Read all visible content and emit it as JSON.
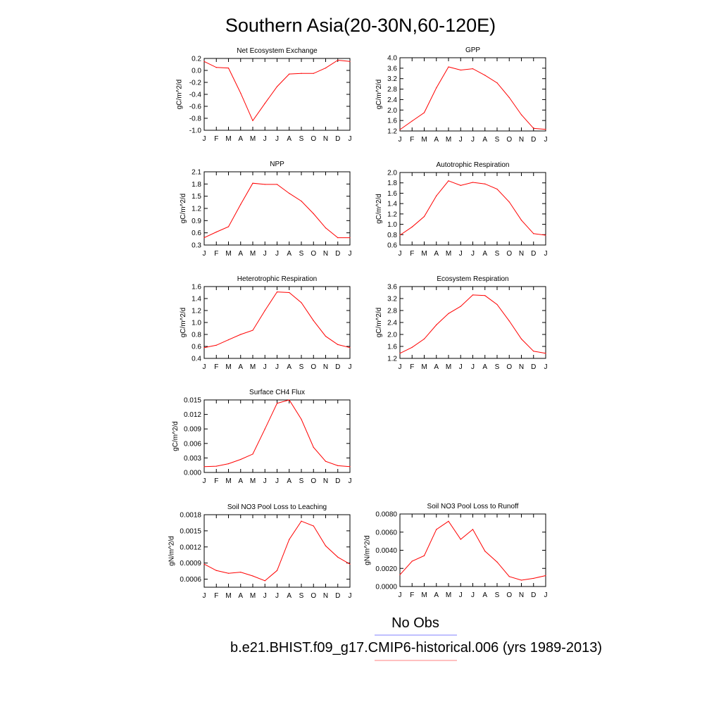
{
  "figure": {
    "title": "Southern Asia(20-30N,60-120E)",
    "legend": [
      {
        "label": "No Obs",
        "color": "#8080ff"
      },
      {
        "label": "b.e21.BHIST.f09_g17.CMIP6-historical.006 (yrs 1989-2013)",
        "color": "#ff8080"
      }
    ]
  },
  "chart_data": [
    {
      "type": "line",
      "title": "Net Ecosystem Exchange",
      "ylabel": "gC/m^2/d",
      "x": [
        "J",
        "F",
        "M",
        "A",
        "M",
        "J",
        "J",
        "A",
        "S",
        "O",
        "N",
        "D",
        "J"
      ],
      "ylim": [
        -1.0,
        0.2
      ],
      "yticks": [
        "0.2",
        "0.0",
        "-0.2",
        "-0.4",
        "-0.6",
        "-0.8",
        "-1.0"
      ],
      "series": [
        {
          "color": "#ff0000",
          "values": [
            0.15,
            0.05,
            0.04,
            -0.38,
            -0.84,
            -0.55,
            -0.27,
            -0.06,
            -0.05,
            -0.05,
            0.04,
            0.17,
            0.15
          ]
        }
      ]
    },
    {
      "type": "line",
      "title": "GPP",
      "ylabel": "gC/m^2/d",
      "x": [
        "J",
        "F",
        "M",
        "A",
        "M",
        "J",
        "J",
        "A",
        "S",
        "O",
        "N",
        "D",
        "J"
      ],
      "ylim": [
        1.2,
        4.0
      ],
      "yticks": [
        "4.0",
        "3.6",
        "3.2",
        "2.8",
        "2.4",
        "2.0",
        "1.6",
        "1.2"
      ],
      "series": [
        {
          "color": "#ff0000",
          "values": [
            1.25,
            1.58,
            1.9,
            2.85,
            3.65,
            3.53,
            3.58,
            3.33,
            3.04,
            2.48,
            1.82,
            1.3,
            1.26
          ]
        }
      ]
    },
    {
      "type": "line",
      "title": "NPP",
      "ylabel": "gC/m^2/d",
      "x": [
        "J",
        "F",
        "M",
        "A",
        "M",
        "J",
        "J",
        "A",
        "S",
        "O",
        "N",
        "D",
        "J"
      ],
      "ylim": [
        0.3,
        2.1
      ],
      "yticks": [
        "2.1",
        "1.8",
        "1.5",
        "1.2",
        "0.9",
        "0.6",
        "0.3"
      ],
      "series": [
        {
          "color": "#ff0000",
          "values": [
            0.48,
            0.62,
            0.75,
            1.3,
            1.82,
            1.79,
            1.79,
            1.57,
            1.38,
            1.07,
            0.72,
            0.48,
            0.48
          ]
        }
      ]
    },
    {
      "type": "line",
      "title": "Autotrophic Respiration",
      "ylabel": "gC/m^2/d",
      "x": [
        "J",
        "F",
        "M",
        "A",
        "M",
        "J",
        "J",
        "A",
        "S",
        "O",
        "N",
        "D",
        "J"
      ],
      "ylim": [
        0.6,
        2.0
      ],
      "yticks": [
        "2.0",
        "1.8",
        "1.6",
        "1.4",
        "1.2",
        "1.0",
        "0.8",
        "0.6"
      ],
      "series": [
        {
          "color": "#ff0000",
          "values": [
            0.79,
            0.95,
            1.15,
            1.55,
            1.84,
            1.75,
            1.81,
            1.78,
            1.68,
            1.43,
            1.08,
            0.82,
            0.79
          ]
        }
      ]
    },
    {
      "type": "line",
      "title": "Heterotrophic Respiration",
      "ylabel": "gC/m^2/d",
      "x": [
        "J",
        "F",
        "M",
        "A",
        "M",
        "J",
        "J",
        "A",
        "S",
        "O",
        "N",
        "D",
        "J"
      ],
      "ylim": [
        0.4,
        1.6
      ],
      "yticks": [
        "1.6",
        "1.4",
        "1.2",
        "1.0",
        "0.8",
        "0.6",
        "0.4"
      ],
      "series": [
        {
          "color": "#ff0000",
          "values": [
            0.58,
            0.62,
            0.71,
            0.8,
            0.87,
            1.2,
            1.51,
            1.5,
            1.33,
            1.03,
            0.77,
            0.63,
            0.58
          ]
        }
      ]
    },
    {
      "type": "line",
      "title": "Ecosystem Respiration",
      "ylabel": "gC/m^2/d",
      "x": [
        "J",
        "F",
        "M",
        "A",
        "M",
        "J",
        "J",
        "A",
        "S",
        "O",
        "N",
        "D",
        "J"
      ],
      "ylim": [
        1.2,
        3.6
      ],
      "yticks": [
        "3.6",
        "3.2",
        "2.8",
        "2.4",
        "2.0",
        "1.6",
        "1.2"
      ],
      "series": [
        {
          "color": "#ff0000",
          "values": [
            1.37,
            1.57,
            1.85,
            2.32,
            2.7,
            2.94,
            3.32,
            3.3,
            3.0,
            2.45,
            1.85,
            1.44,
            1.37
          ]
        }
      ]
    },
    {
      "type": "line",
      "title": "Surface CH4 Flux",
      "ylabel": "gC/m^2/d",
      "x": [
        "J",
        "F",
        "M",
        "A",
        "M",
        "J",
        "J",
        "A",
        "S",
        "O",
        "N",
        "D",
        "J"
      ],
      "ylim": [
        0.0,
        0.015
      ],
      "yticks": [
        "0.015",
        "0.012",
        "0.009",
        "0.006",
        "0.003",
        "0.000"
      ],
      "series": [
        {
          "color": "#ff0000",
          "values": [
            0.0012,
            0.0013,
            0.0018,
            0.0027,
            0.0038,
            0.009,
            0.0143,
            0.015,
            0.011,
            0.0052,
            0.0023,
            0.0014,
            0.0012
          ]
        }
      ]
    },
    {
      "type": "line",
      "title": "Soil NO3 Pool Loss to Leaching",
      "ylabel": "gN/m^2/d",
      "x": [
        "J",
        "F",
        "M",
        "A",
        "M",
        "J",
        "J",
        "A",
        "S",
        "O",
        "N",
        "D",
        "J"
      ],
      "ylim": [
        0.00045,
        0.0018
      ],
      "yticks": [
        "0.0018",
        "0.0015",
        "0.0012",
        "0.0009",
        "0.0006"
      ],
      "series": [
        {
          "color": "#ff0000",
          "values": [
            0.00088,
            0.00076,
            0.00071,
            0.00073,
            0.00066,
            0.00057,
            0.00076,
            0.00134,
            0.00168,
            0.00159,
            0.00122,
            0.00101,
            0.00088
          ]
        }
      ]
    },
    {
      "type": "line",
      "title": "Soil NO3 Pool Loss to Runoff",
      "ylabel": "gN/m^2/d",
      "x": [
        "J",
        "F",
        "M",
        "A",
        "M",
        "J",
        "J",
        "A",
        "S",
        "O",
        "N",
        "D",
        "J"
      ],
      "ylim": [
        0.0,
        0.008
      ],
      "yticks": [
        "0.0080",
        "0.0060",
        "0.0040",
        "0.0020",
        "0.0000"
      ],
      "series": [
        {
          "color": "#ff0000",
          "values": [
            0.0013,
            0.0028,
            0.0034,
            0.0063,
            0.0072,
            0.0052,
            0.0063,
            0.0039,
            0.0027,
            0.0011,
            0.0007,
            0.0009,
            0.0012
          ]
        }
      ]
    }
  ]
}
